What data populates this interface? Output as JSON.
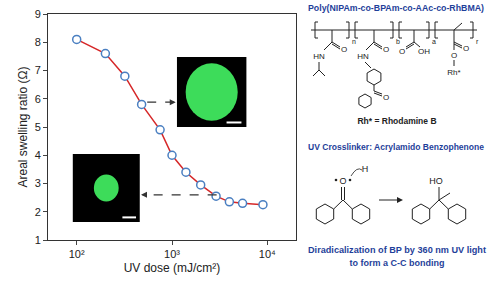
{
  "chart_data": {
    "type": "line",
    "x_label": "UV dose (mJ/cm²)",
    "y_label": "Areal swelling ratio (Ω)",
    "x": [
      100,
      200,
      320,
      480,
      750,
      1000,
      1400,
      2000,
      2900,
      4000,
      5500,
      9000
    ],
    "values": [
      8.1,
      7.6,
      6.8,
      5.8,
      4.9,
      4.0,
      3.4,
      2.95,
      2.55,
      2.35,
      2.3,
      2.25
    ],
    "color": "#d62728",
    "marker": "circle",
    "log": "x",
    "xlim": [
      50,
      20000
    ],
    "xticks": [
      {
        "value": 100,
        "label": "10²"
      },
      {
        "value": 1000,
        "label": "10³"
      },
      {
        "value": 10000,
        "label": "10⁴"
      }
    ],
    "ylim": [
      1,
      9
    ],
    "yticks": [
      1,
      2,
      3,
      4,
      5,
      6,
      7,
      8,
      9
    ],
    "grid": false
  },
  "panel": {
    "polymer_title": "Poly(NIPAm-co-BPAm-co-AAc-co-RhBMA)",
    "subscripts": [
      "n",
      "b",
      "a",
      "r"
    ],
    "atom_labels": [
      "HN",
      "O",
      "HN",
      "O",
      "O",
      "O",
      "OH",
      "O",
      "O",
      "Rh*"
    ],
    "rh_note": "Rh* = Rhodamine B",
    "crosslinker_title": "UV Crosslinker: Acrylamido Benzophenone",
    "bp_labels": [
      "O",
      "H",
      "HO"
    ],
    "caption": [
      "Diradicalization of BP by 360 nm UV light",
      "to form a C-C bonding"
    ]
  }
}
